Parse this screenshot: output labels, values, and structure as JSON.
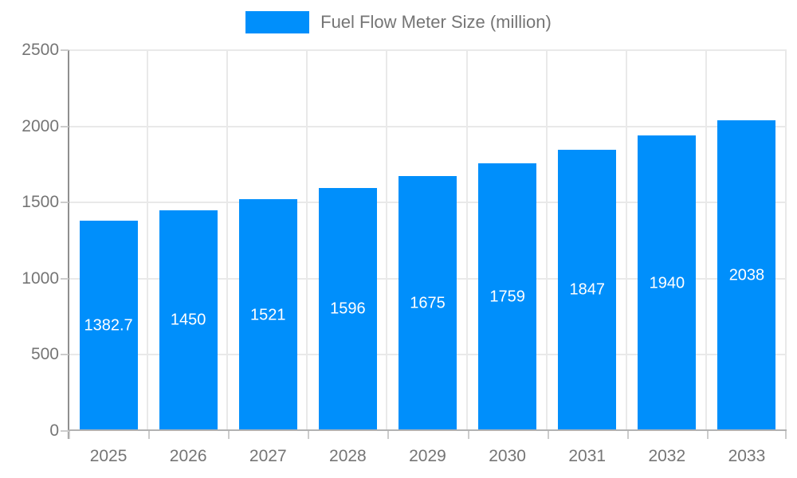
{
  "legend": {
    "label": "Fuel Flow Meter Size (million)",
    "swatch_color": "#008FFB"
  },
  "chart_data": {
    "type": "bar",
    "title": "Fuel Flow Meter Size (million)",
    "categories": [
      "2025",
      "2026",
      "2027",
      "2028",
      "2029",
      "2030",
      "2031",
      "2032",
      "2033"
    ],
    "values": [
      1382.7,
      1450,
      1521,
      1596,
      1675,
      1759,
      1847,
      1940,
      2038
    ],
    "value_labels": [
      "1382.7",
      "1450",
      "1521",
      "1596",
      "1675",
      "1759",
      "1847",
      "1940",
      "2038"
    ],
    "xlabel": "",
    "ylabel": "",
    "ylim": [
      0,
      2500
    ],
    "yticks": [
      0,
      500,
      1000,
      1500,
      2000,
      2500
    ],
    "grid": true,
    "legend_position": "top",
    "bar_color": "#008FFB",
    "value_label_color": "#ffffff",
    "axis_text_color": "#757575"
  }
}
